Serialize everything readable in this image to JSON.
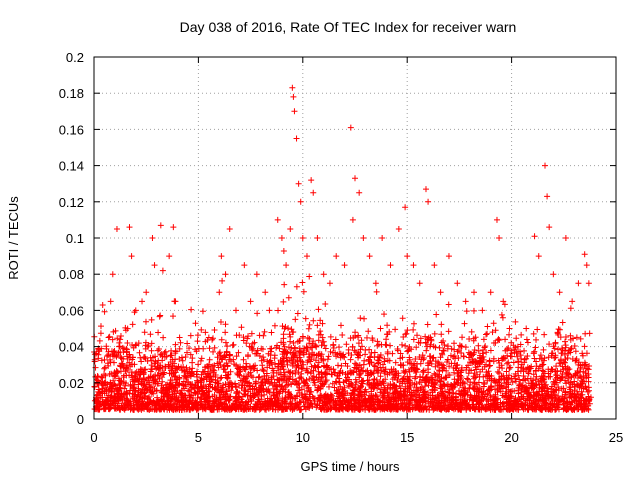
{
  "chart_data": {
    "type": "scatter",
    "title": "Day 038 of 2016, Rate Of TEC Index for receiver warn",
    "xlabel": "GPS time / hours",
    "ylabel": "ROTI / TECUs",
    "xlim": [
      0,
      25
    ],
    "ylim": [
      0,
      0.2
    ],
    "xticks": [
      0,
      5,
      10,
      15,
      20,
      25
    ],
    "xtick_labels": [
      "0",
      "5",
      "10",
      "15",
      "20",
      "25"
    ],
    "yticks": [
      0,
      0.02,
      0.04,
      0.06,
      0.08,
      0.1,
      0.12,
      0.14,
      0.16,
      0.18,
      0.2
    ],
    "ytick_labels": [
      "0",
      "0.02",
      "0.04",
      "0.06",
      "0.08",
      "0.1",
      "0.12",
      "0.14",
      "0.16",
      "0.18",
      "0.2"
    ],
    "grid": true,
    "marker": "+",
    "color": "#ff0000",
    "series": [
      {
        "name": "ROTI",
        "points": [
          [
            0.3,
            0.012
          ],
          [
            0.5,
            0.02
          ],
          [
            0.7,
            0.045
          ],
          [
            0.8,
            0.065
          ],
          [
            0.9,
            0.08
          ],
          [
            1.0,
            0.035
          ],
          [
            1.1,
            0.105
          ],
          [
            1.2,
            0.04
          ],
          [
            1.6,
            0.042
          ],
          [
            1.7,
            0.106
          ],
          [
            1.8,
            0.09
          ],
          [
            2.0,
            0.06
          ],
          [
            2.3,
            0.065
          ],
          [
            2.5,
            0.07
          ],
          [
            2.8,
            0.1
          ],
          [
            2.9,
            0.085
          ],
          [
            3.2,
            0.107
          ],
          [
            3.3,
            0.082
          ],
          [
            3.6,
            0.09
          ],
          [
            3.8,
            0.106
          ],
          [
            3.9,
            0.065
          ],
          [
            4.1,
            0.045
          ],
          [
            4.5,
            0.025
          ],
          [
            5.0,
            0.02
          ],
          [
            5.5,
            0.045
          ],
          [
            6.0,
            0.07
          ],
          [
            6.1,
            0.09
          ],
          [
            6.3,
            0.08
          ],
          [
            6.5,
            0.105
          ],
          [
            6.8,
            0.06
          ],
          [
            7.2,
            0.085
          ],
          [
            7.5,
            0.065
          ],
          [
            7.8,
            0.08
          ],
          [
            8.2,
            0.07
          ],
          [
            8.4,
            0.06
          ],
          [
            8.8,
            0.11
          ],
          [
            9.0,
            0.1
          ],
          [
            9.2,
            0.085
          ],
          [
            9.4,
            0.105
          ],
          [
            9.5,
            0.183
          ],
          [
            9.55,
            0.178
          ],
          [
            9.6,
            0.17
          ],
          [
            9.7,
            0.155
          ],
          [
            9.8,
            0.13
          ],
          [
            9.9,
            0.12
          ],
          [
            10.0,
            0.1
          ],
          [
            10.2,
            0.09
          ],
          [
            10.4,
            0.132
          ],
          [
            10.5,
            0.125
          ],
          [
            10.7,
            0.1
          ],
          [
            11.0,
            0.08
          ],
          [
            11.3,
            0.075
          ],
          [
            11.6,
            0.09
          ],
          [
            12.0,
            0.085
          ],
          [
            12.3,
            0.161
          ],
          [
            12.4,
            0.11
          ],
          [
            12.5,
            0.133
          ],
          [
            12.7,
            0.125
          ],
          [
            12.9,
            0.1
          ],
          [
            13.2,
            0.09
          ],
          [
            13.5,
            0.075
          ],
          [
            13.8,
            0.1
          ],
          [
            14.2,
            0.085
          ],
          [
            14.6,
            0.105
          ],
          [
            14.9,
            0.117
          ],
          [
            15.0,
            0.09
          ],
          [
            15.3,
            0.085
          ],
          [
            15.6,
            0.075
          ],
          [
            15.9,
            0.127
          ],
          [
            16.0,
            0.12
          ],
          [
            16.3,
            0.085
          ],
          [
            16.6,
            0.07
          ],
          [
            17.0,
            0.09
          ],
          [
            17.4,
            0.075
          ],
          [
            17.8,
            0.065
          ],
          [
            18.2,
            0.07
          ],
          [
            18.6,
            0.06
          ],
          [
            19.0,
            0.07
          ],
          [
            19.3,
            0.11
          ],
          [
            19.4,
            0.1
          ],
          [
            19.6,
            0.065
          ],
          [
            19.9,
            0.05
          ],
          [
            20.3,
            0.04
          ],
          [
            20.7,
            0.05
          ],
          [
            21.1,
            0.101
          ],
          [
            21.3,
            0.09
          ],
          [
            21.6,
            0.14
          ],
          [
            21.7,
            0.123
          ],
          [
            21.8,
            0.106
          ],
          [
            22.0,
            0.08
          ],
          [
            22.3,
            0.07
          ],
          [
            22.6,
            0.1
          ],
          [
            22.9,
            0.065
          ],
          [
            23.2,
            0.075
          ],
          [
            23.5,
            0.091
          ],
          [
            23.6,
            0.085
          ],
          [
            23.7,
            0.075
          ],
          [
            0.1,
            0.01
          ],
          [
            0.2,
            0.015
          ],
          [
            23.8,
            0.012
          ]
        ]
      }
    ]
  }
}
